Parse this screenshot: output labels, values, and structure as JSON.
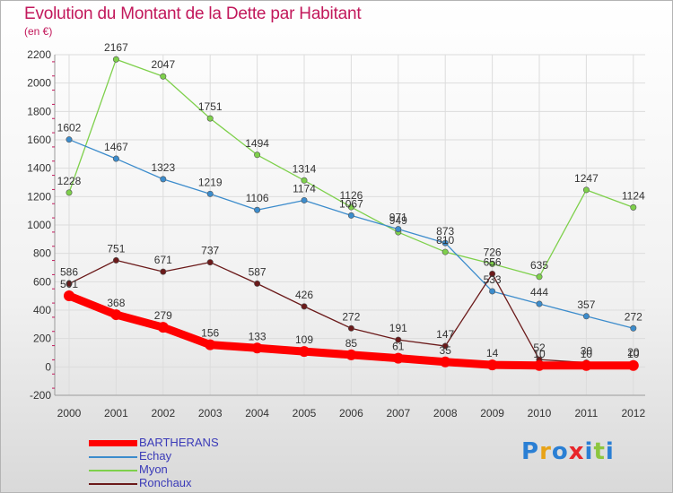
{
  "title": "Evolution du Montant de la Dette par Habitant",
  "unit": "(en €)",
  "logo": {
    "text": "Proxiti",
    "colors": [
      "#2a7fd4",
      "#e8a317",
      "#2a7fd4",
      "#e8262a",
      "#2a7fd4",
      "#8dc63f",
      "#2a7fd4"
    ]
  },
  "chart_data": {
    "type": "line",
    "x": [
      "2000",
      "2001",
      "2002",
      "2003",
      "2004",
      "2005",
      "2006",
      "2007",
      "2008",
      "2009",
      "2010",
      "2011",
      "2012"
    ],
    "ylim": [
      -200,
      2200
    ],
    "yticks": [
      -200,
      0,
      200,
      400,
      600,
      800,
      1000,
      1200,
      1400,
      1600,
      1800,
      2000,
      2200
    ],
    "grid": true,
    "legend_position": "bottom-left",
    "series": [
      {
        "name": "BARTHERANS",
        "color": "#ff0000",
        "values": [
          501,
          368,
          279,
          156,
          133,
          109,
          85,
          61,
          35,
          14,
          10,
          10,
          10
        ],
        "labels": [
          "501",
          "368",
          "279",
          "156",
          "133",
          "109",
          "85",
          "61",
          "35",
          "14",
          "10",
          "10",
          "10"
        ]
      },
      {
        "name": "Echay",
        "color": "#3c8ccc",
        "values": [
          1602,
          1467,
          1323,
          1219,
          1106,
          1174,
          1067,
          971,
          873,
          533,
          444,
          357,
          272
        ],
        "labels": [
          "1602",
          "1467",
          "1323",
          "1219",
          "1106",
          "1174",
          "1067",
          "971",
          "873",
          "533",
          "444",
          "357",
          "272"
        ]
      },
      {
        "name": "Myon",
        "color": "#7ed04b",
        "values": [
          1228,
          2167,
          2047,
          1751,
          1494,
          1314,
          1126,
          949,
          810,
          726,
          635,
          1247,
          1124
        ],
        "labels": [
          "1228",
          "2167",
          "2047",
          "1751",
          "1494",
          "1314",
          "1126",
          "949",
          "810",
          "726",
          "635",
          "1247",
          "1124"
        ]
      },
      {
        "name": "Ronchaux",
        "color": "#6b1a1a",
        "values": [
          586,
          751,
          671,
          737,
          587,
          426,
          272,
          191,
          147,
          656,
          52,
          30,
          20
        ],
        "labels": [
          "586",
          "751",
          "671",
          "737",
          "587",
          "426",
          "272",
          "191",
          "147",
          "656",
          "52",
          "30",
          "20"
        ]
      }
    ]
  }
}
